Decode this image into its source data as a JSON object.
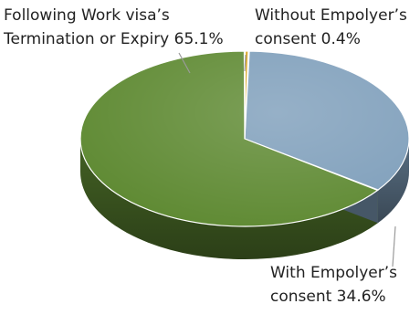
{
  "chart_data": {
    "type": "pie",
    "title": "",
    "style": "3d",
    "slices": [
      {
        "label_lines": [
          "With Empolyer’s",
          "consent 34.6%"
        ],
        "value": 34.6,
        "color": "#7f9fbb"
      },
      {
        "label_lines": [
          "Following Work visa’s",
          "Termination or Expiry 65.1%"
        ],
        "value": 65.1,
        "color": "#5f8a33"
      },
      {
        "label_lines": [
          "Without Empolyer’s",
          "consent 0.4%"
        ],
        "value": 0.4,
        "color": "#d6a21d"
      }
    ]
  }
}
